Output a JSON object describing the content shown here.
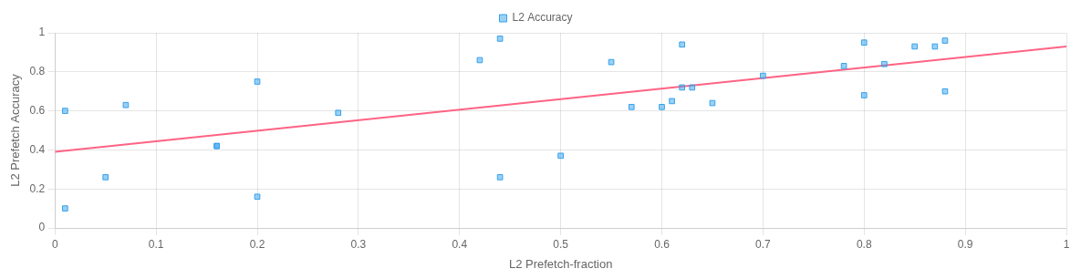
{
  "chart_data": {
    "type": "scatter",
    "xlabel": "L2 Prefetch-fraction",
    "ylabel": "L2 Prefetch Accuracy",
    "xlim": [
      0,
      1
    ],
    "ylim": [
      0,
      1
    ],
    "xticks": [
      0,
      0.1,
      0.2,
      0.3,
      0.4,
      0.5,
      0.6,
      0.7,
      0.8,
      0.9,
      1
    ],
    "yticks": [
      0,
      0.2,
      0.4,
      0.6,
      0.8,
      1
    ],
    "grid": true,
    "legend": "top",
    "series": [
      {
        "name": "L2 Accuracy",
        "type": "scatter",
        "marker": "square",
        "x": [
          0.01,
          0.01,
          0.05,
          0.07,
          0.16,
          0.16,
          0.2,
          0.2,
          0.28,
          0.42,
          0.44,
          0.44,
          0.5,
          0.55,
          0.57,
          0.6,
          0.61,
          0.62,
          0.62,
          0.63,
          0.65,
          0.7,
          0.78,
          0.8,
          0.8,
          0.82,
          0.85,
          0.87,
          0.88,
          0.88
        ],
        "values": [
          0.6,
          0.1,
          0.26,
          0.63,
          0.42,
          0.42,
          0.75,
          0.16,
          0.59,
          0.86,
          0.97,
          0.26,
          0.37,
          0.85,
          0.62,
          0.62,
          0.65,
          0.94,
          0.72,
          0.72,
          0.64,
          0.78,
          0.83,
          0.95,
          0.68,
          0.84,
          0.93,
          0.93,
          0.96,
          0.7
        ]
      },
      {
        "type": "line",
        "line_style": "solid",
        "x": [
          0.0,
          1.0
        ],
        "values": [
          0.39,
          0.93
        ]
      }
    ]
  }
}
